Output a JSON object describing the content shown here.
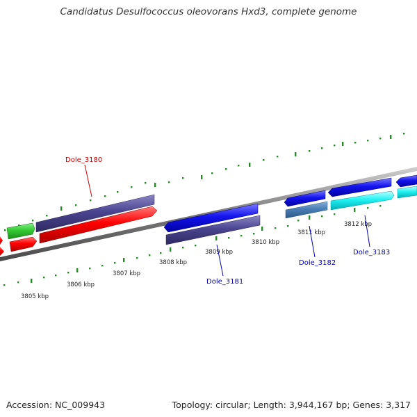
{
  "title": "Candidatus Desulfococcus oleovorans Hxd3, complete genome",
  "footer": {
    "accession": "Accession: NC_009943",
    "topology": "Topology: circular; Length: 3,944,167 bp; Genes: 3,317"
  },
  "scale": {
    "labels": [
      "3805 kbp",
      "3806 kbp",
      "3807 kbp",
      "3808 kbp",
      "3809 kbp",
      "3810 kbp",
      "3811 kbp",
      "3812 kbp"
    ]
  },
  "genes": [
    {
      "name": "Dole_3180",
      "color": "#cc0000"
    },
    {
      "name": "Dole_3181",
      "color": "#0000aa"
    },
    {
      "name": "Dole_3182",
      "color": "#0000aa"
    },
    {
      "name": "Dole_3183",
      "color": "#0000aa"
    }
  ]
}
